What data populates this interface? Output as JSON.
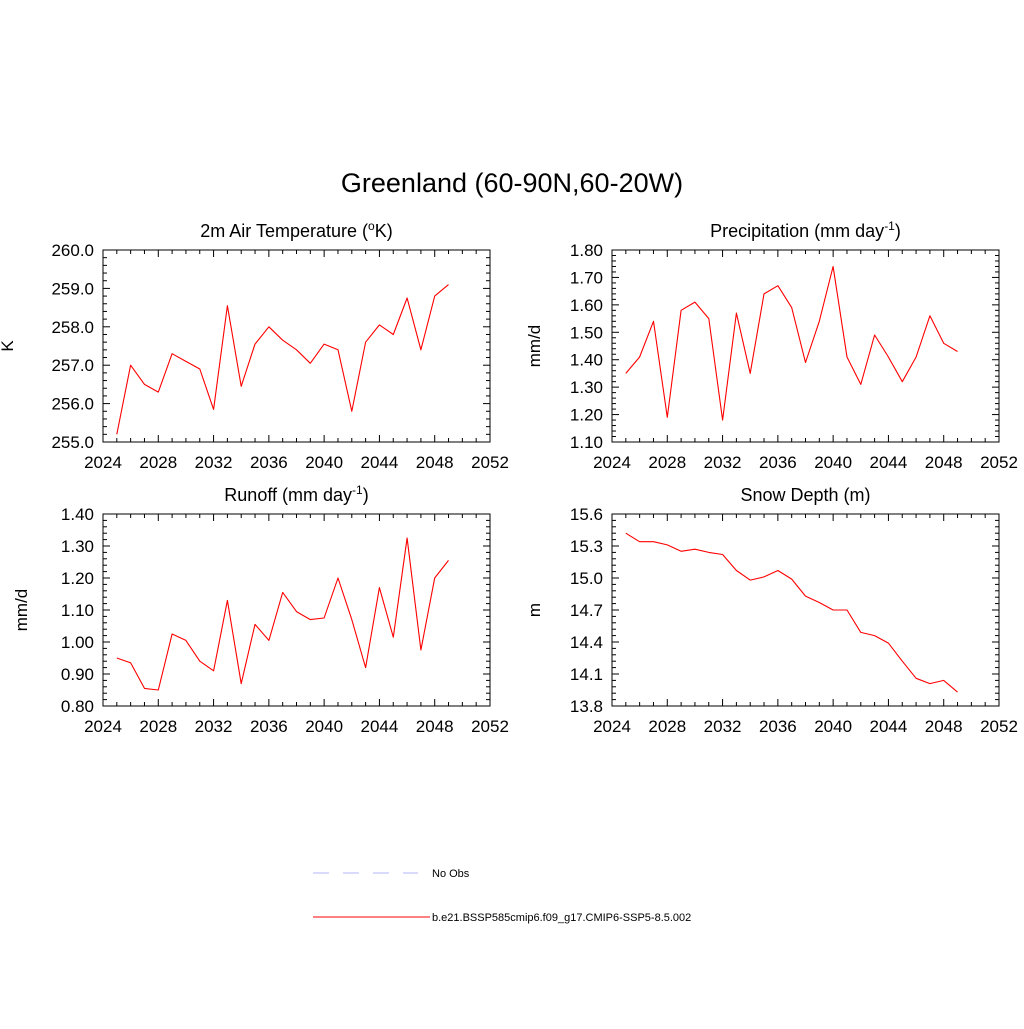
{
  "figure": {
    "title": "Greenland (60-90N,60-20W)"
  },
  "legend": {
    "items": [
      {
        "label": "No Obs",
        "color": "#b4b4ff",
        "style": "dashed"
      },
      {
        "label": "b.e21.BSSP585cmip6.f09_g17.CMIP6-SSP5-8.5.002",
        "color": "#ff0000",
        "style": "solid"
      }
    ]
  },
  "chart_data": [
    {
      "type": "line",
      "title": "2m Air Temperature (",
      "title_sup": "o",
      "title_after": "K)",
      "ylabel": "K",
      "xlim": [
        2024,
        2052
      ],
      "ylim": [
        255.0,
        260.0
      ],
      "xticks": [
        2024,
        2028,
        2032,
        2036,
        2040,
        2044,
        2048,
        2052
      ],
      "yticks": [
        "255.0",
        "256.0",
        "257.0",
        "258.0",
        "259.0",
        "260.0"
      ],
      "grid": false,
      "series": [
        {
          "color": "#ff0000",
          "x": [
            2025,
            2026,
            2027,
            2028,
            2029,
            2030,
            2031,
            2032,
            2033,
            2034,
            2035,
            2036,
            2037,
            2038,
            2039,
            2040,
            2041,
            2042,
            2043,
            2044,
            2045,
            2046,
            2047,
            2048,
            2049
          ],
          "y": [
            255.2,
            257.0,
            256.5,
            256.3,
            257.3,
            257.1,
            256.9,
            255.85,
            258.55,
            256.45,
            257.55,
            258.0,
            257.65,
            257.4,
            257.05,
            257.55,
            257.4,
            255.8,
            257.6,
            258.05,
            257.8,
            258.75,
            257.4,
            258.8,
            259.1
          ]
        }
      ]
    },
    {
      "type": "line",
      "title": "Precipitation (mm day",
      "title_sup": "-1",
      "title_after": ")",
      "ylabel": "mm/d",
      "xlim": [
        2024,
        2052
      ],
      "ylim": [
        1.1,
        1.8
      ],
      "xticks": [
        2024,
        2028,
        2032,
        2036,
        2040,
        2044,
        2048,
        2052
      ],
      "yticks": [
        "1.10",
        "1.20",
        "1.30",
        "1.40",
        "1.50",
        "1.60",
        "1.70",
        "1.80"
      ],
      "grid": false,
      "series": [
        {
          "color": "#ff0000",
          "x": [
            2025,
            2026,
            2027,
            2028,
            2029,
            2030,
            2031,
            2032,
            2033,
            2034,
            2035,
            2036,
            2037,
            2038,
            2039,
            2040,
            2041,
            2042,
            2043,
            2044,
            2045,
            2046,
            2047,
            2048,
            2049
          ],
          "y": [
            1.35,
            1.41,
            1.54,
            1.19,
            1.58,
            1.61,
            1.55,
            1.18,
            1.57,
            1.35,
            1.64,
            1.67,
            1.59,
            1.39,
            1.54,
            1.74,
            1.41,
            1.31,
            1.49,
            1.41,
            1.32,
            1.41,
            1.56,
            1.46,
            1.43
          ]
        }
      ]
    },
    {
      "type": "line",
      "title": "Runoff (mm day",
      "title_sup": "-1",
      "title_after": ")",
      "ylabel": "mm/d",
      "xlim": [
        2024,
        2052
      ],
      "ylim": [
        0.8,
        1.4
      ],
      "xticks": [
        2024,
        2028,
        2032,
        2036,
        2040,
        2044,
        2048,
        2052
      ],
      "yticks": [
        "0.80",
        "0.90",
        "1.00",
        "1.10",
        "1.20",
        "1.30",
        "1.40"
      ],
      "grid": false,
      "series": [
        {
          "color": "#ff0000",
          "x": [
            2025,
            2026,
            2027,
            2028,
            2029,
            2030,
            2031,
            2032,
            2033,
            2034,
            2035,
            2036,
            2037,
            2038,
            2039,
            2040,
            2041,
            2042,
            2043,
            2044,
            2045,
            2046,
            2047,
            2048,
            2049
          ],
          "y": [
            0.95,
            0.935,
            0.855,
            0.85,
            1.025,
            1.005,
            0.94,
            0.91,
            1.13,
            0.87,
            1.055,
            1.005,
            1.155,
            1.095,
            1.07,
            1.075,
            1.2,
            1.07,
            0.92,
            1.17,
            1.015,
            1.325,
            0.975,
            1.2,
            1.255
          ]
        }
      ]
    },
    {
      "type": "line",
      "title": "Snow Depth (m)",
      "title_sup": "",
      "title_after": "",
      "ylabel": "m",
      "xlim": [
        2024,
        2052
      ],
      "ylim": [
        13.8,
        15.6
      ],
      "xticks": [
        2024,
        2028,
        2032,
        2036,
        2040,
        2044,
        2048,
        2052
      ],
      "yticks": [
        "13.8",
        "14.1",
        "14.4",
        "14.7",
        "15.0",
        "15.3",
        "15.6"
      ],
      "grid": false,
      "series": [
        {
          "color": "#ff0000",
          "x": [
            2025,
            2026,
            2027,
            2028,
            2029,
            2030,
            2031,
            2032,
            2033,
            2034,
            2035,
            2036,
            2037,
            2038,
            2039,
            2040,
            2041,
            2042,
            2043,
            2044,
            2045,
            2046,
            2047,
            2048,
            2049
          ],
          "y": [
            15.42,
            15.34,
            15.34,
            15.31,
            15.25,
            15.27,
            15.24,
            15.22,
            15.07,
            14.98,
            15.01,
            15.07,
            14.99,
            14.83,
            14.77,
            14.7,
            14.7,
            14.49,
            14.46,
            14.39,
            14.22,
            14.06,
            14.01,
            14.04,
            13.93
          ]
        }
      ]
    }
  ]
}
